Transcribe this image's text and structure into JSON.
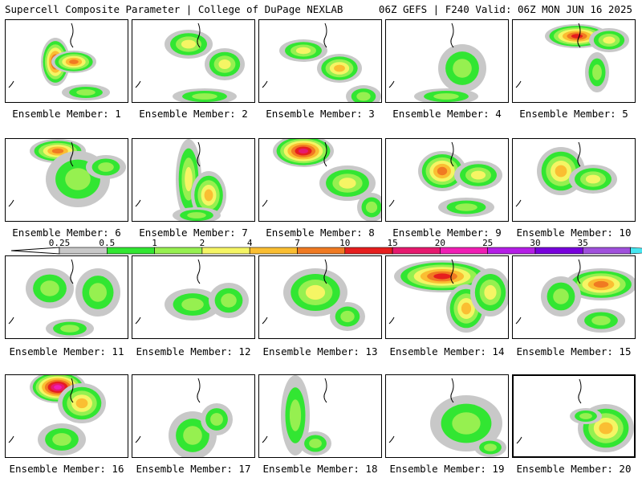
{
  "header": {
    "left": "Supercell Composite Parameter | College of DuPage NEXLAB",
    "right": "06Z GEFS | F240 Valid: 06Z MON JUN 16 2025"
  },
  "panels": [
    {
      "label": "Ensemble Member: 1"
    },
    {
      "label": "Ensemble Member: 2"
    },
    {
      "label": "Ensemble Member: 3"
    },
    {
      "label": "Ensemble Member: 4"
    },
    {
      "label": "Ensemble Member: 5"
    },
    {
      "label": "Ensemble Member: 6"
    },
    {
      "label": "Ensemble Member: 7"
    },
    {
      "label": "Ensemble Member: 8"
    },
    {
      "label": "Ensemble Member: 9"
    },
    {
      "label": "Ensemble Member: 10"
    },
    {
      "label": "Ensemble Member: 11"
    },
    {
      "label": "Ensemble Member: 12"
    },
    {
      "label": "Ensemble Member: 13"
    },
    {
      "label": "Ensemble Member: 14"
    },
    {
      "label": "Ensemble Member: 15"
    },
    {
      "label": "Ensemble Member: 16"
    },
    {
      "label": "Ensemble Member: 17"
    },
    {
      "label": "Ensemble Member: 18"
    },
    {
      "label": "Ensemble Member: 19"
    },
    {
      "label": "Ensemble Member: 20",
      "selected": true
    }
  ],
  "legend": {
    "thresholds": [
      "0.25",
      "0.5",
      "1",
      "2",
      "4",
      "7",
      "10",
      "15",
      "20",
      "25",
      "30",
      "35"
    ],
    "colors": [
      "#c8c8c8",
      "#32e632",
      "#96f050",
      "#f5f564",
      "#fabe32",
      "#f07a22",
      "#e61e1e",
      "#e6196e",
      "#f01eb4",
      "#b41ee6",
      "#7800dc",
      "#a050dc",
      "#46e6f0"
    ]
  }
}
